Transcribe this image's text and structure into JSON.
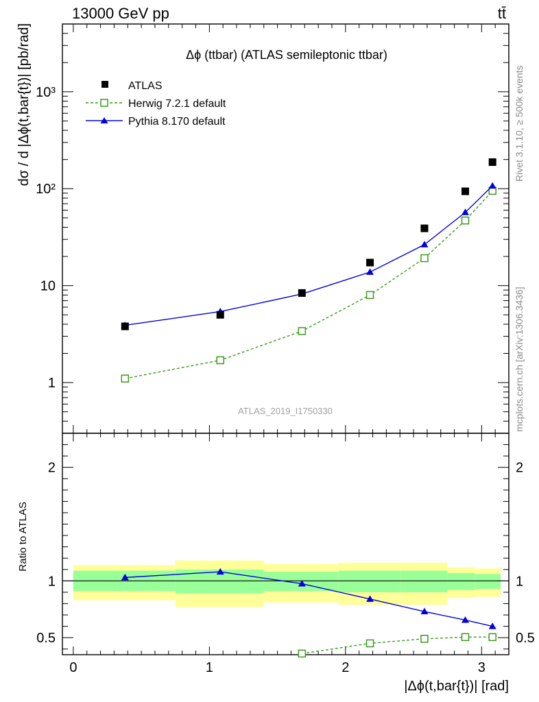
{
  "header": {
    "energy_label": "13000 GeV pp",
    "process_label": "tt̄"
  },
  "side_labels": {
    "rivet": "Rivet 3.1.10, ≥ 500k events",
    "mcplots": "mcplots.cern.ch [arXiv:1306.3436]"
  },
  "chart_data": [
    {
      "type": "scatter",
      "panel": "main",
      "title": "Δϕ (ttbar) (ATLAS semileptonic ttbar)",
      "watermark": "ATLAS_2019_I1750330",
      "xlabel": "|Δϕ(t,bar{t})| [rad]",
      "ylabel": "dσ / d |Δϕ(t,bar{t})| [pb/rad]",
      "yscale": "log",
      "xlim": [
        -0.08,
        3.2
      ],
      "ylim": [
        0.3,
        5000
      ],
      "x_ticks": [
        "0",
        "1",
        "2",
        "3"
      ],
      "y_ticks": [
        "1",
        "10",
        "10²",
        "10³"
      ],
      "legend_position": "top-left",
      "x_bins": [
        [
          0.0,
          0.75
        ],
        [
          0.75,
          1.4
        ],
        [
          1.4,
          1.95
        ],
        [
          1.95,
          2.4
        ],
        [
          2.4,
          2.75
        ],
        [
          2.75,
          2.95
        ],
        [
          2.95,
          3.14
        ]
      ],
      "series": [
        {
          "name": "ATLAS",
          "color": "#000000",
          "marker": "square-filled",
          "x": [
            0.38,
            1.08,
            1.68,
            2.18,
            2.58,
            2.88,
            3.08
          ],
          "values": [
            3.8,
            5.0,
            8.4,
            17.3,
            39,
            94,
            188
          ]
        },
        {
          "name": "Herwig 7.2.1 default",
          "color": "#3a9a1a",
          "marker": "square-open",
          "line": "dashed",
          "x": [
            0.38,
            1.08,
            1.68,
            2.18,
            2.58,
            2.88,
            3.08
          ],
          "values": [
            1.1,
            1.7,
            3.4,
            8.0,
            19.2,
            47,
            95
          ]
        },
        {
          "name": "Pythia 8.170 default",
          "color": "#0000dd",
          "marker": "triangle-filled",
          "line": "solid",
          "x": [
            0.38,
            1.08,
            1.68,
            2.18,
            2.58,
            2.88,
            3.08
          ],
          "values": [
            3.9,
            5.4,
            8.2,
            13.8,
            26.5,
            57,
            107
          ]
        }
      ]
    },
    {
      "type": "line",
      "panel": "ratio",
      "ylabel": "Ratio to ATLAS",
      "xlim": [
        -0.08,
        3.2
      ],
      "ylim": [
        0.35,
        2.3
      ],
      "x_ticks": [
        "0",
        "1",
        "2",
        "3"
      ],
      "y_ticks": [
        "0.5",
        "1",
        "2"
      ],
      "reference_line": 1,
      "bands": [
        {
          "x": [
            0.0,
            0.75
          ],
          "inner": [
            0.91,
            1.09
          ],
          "outer": [
            0.83,
            1.14
          ]
        },
        {
          "x": [
            0.75,
            1.4
          ],
          "inner": [
            0.89,
            1.1
          ],
          "outer": [
            0.77,
            1.18
          ]
        },
        {
          "x": [
            1.4,
            1.95
          ],
          "inner": [
            0.91,
            1.08
          ],
          "outer": [
            0.81,
            1.15
          ]
        },
        {
          "x": [
            1.95,
            2.4
          ],
          "inner": [
            0.9,
            1.09
          ],
          "outer": [
            0.79,
            1.16
          ]
        },
        {
          "x": [
            2.4,
            2.75
          ],
          "inner": [
            0.9,
            1.09
          ],
          "outer": [
            0.79,
            1.16
          ]
        },
        {
          "x": [
            2.75,
            2.95
          ],
          "inner": [
            0.92,
            1.07
          ],
          "outer": [
            0.85,
            1.12
          ]
        },
        {
          "x": [
            2.95,
            3.14
          ],
          "inner": [
            0.93,
            1.06
          ],
          "outer": [
            0.86,
            1.11
          ]
        }
      ],
      "band_colors": {
        "inner": "#99ff99",
        "outer": "#ffff99"
      },
      "series": [
        {
          "name": "Herwig 7.2.1 default",
          "color": "#3a9a1a",
          "marker": "square-open",
          "line": "dashed",
          "x": [
            1.68,
            2.18,
            2.58,
            2.88,
            3.08
          ],
          "values": [
            0.36,
            0.45,
            0.49,
            0.505,
            0.505
          ]
        },
        {
          "name": "Pythia 8.170 default",
          "color": "#0000dd",
          "marker": "triangle-filled",
          "line": "solid",
          "x": [
            0.38,
            1.08,
            1.68,
            2.18,
            2.58,
            2.88,
            3.08
          ],
          "values": [
            1.03,
            1.08,
            0.975,
            0.84,
            0.73,
            0.655,
            0.6
          ]
        }
      ]
    }
  ]
}
